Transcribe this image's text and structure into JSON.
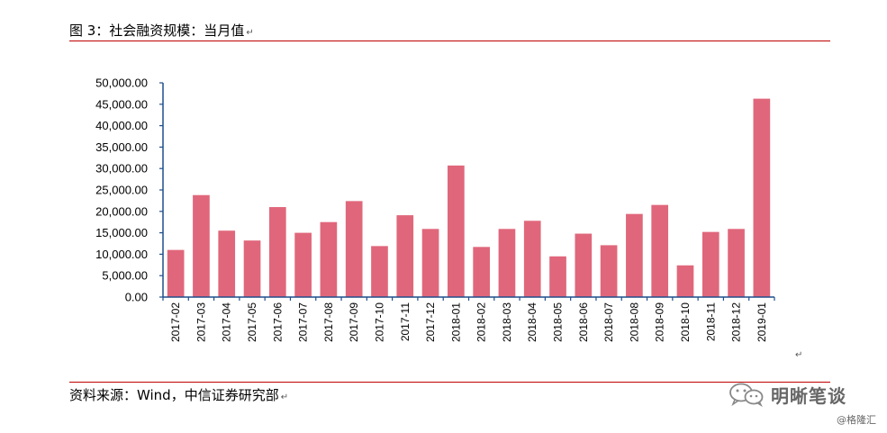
{
  "header": {
    "title": "图 3：社会融资规模：当月值"
  },
  "footer": {
    "source": "资料来源：Wind，中信证券研究部"
  },
  "return_mark": "↵",
  "watermark": {
    "wechat_name": "明晰笔谈",
    "credit": "@格隆汇",
    "icon": "wechat-icon"
  },
  "colors": {
    "bar": "#e0677b",
    "axis": "#1f4e8c",
    "rule": "#c00000"
  },
  "chart_data": {
    "type": "bar",
    "title": "",
    "xlabel": "",
    "ylabel": "",
    "ylim": [
      0,
      50000
    ],
    "y_ticks": [
      "0.00",
      "5,000.00",
      "10,000.00",
      "15,000.00",
      "20,000.00",
      "25,000.00",
      "30,000.00",
      "35,000.00",
      "40,000.00",
      "45,000.00",
      "50,000.00"
    ],
    "categories": [
      "2017-02",
      "2017-03",
      "2017-04",
      "2017-05",
      "2017-06",
      "2017-07",
      "2017-08",
      "2017-09",
      "2017-10",
      "2017-11",
      "2017-12",
      "2018-01",
      "2018-02",
      "2018-03",
      "2018-04",
      "2018-05",
      "2018-06",
      "2018-07",
      "2018-08",
      "2018-09",
      "2018-10",
      "2018-11",
      "2018-12",
      "2019-01"
    ],
    "values": [
      11000,
      23800,
      15500,
      13200,
      21000,
      15000,
      17500,
      22400,
      11900,
      19100,
      15900,
      30700,
      11700,
      15900,
      17800,
      9500,
      14800,
      12100,
      19400,
      21500,
      7400,
      15200,
      15900,
      46300
    ],
    "grid": false,
    "legend": "none"
  }
}
